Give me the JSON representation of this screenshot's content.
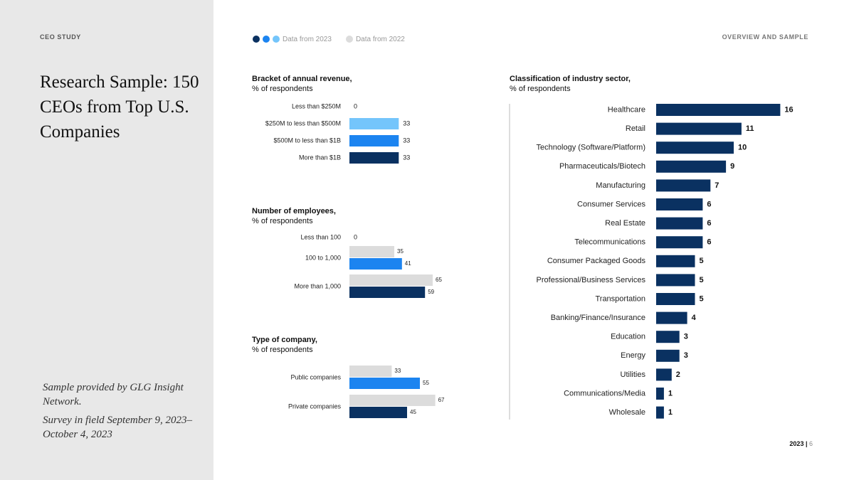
{
  "left": {
    "eyebrow": "CEO STUDY",
    "title": "Research Sample: 150 CEOs from Top U.S. Companies",
    "note1": "Sample provided by GLG Insight Network.",
    "note2": "Survey in field September 9, 2023–October 4, 2023"
  },
  "header": {
    "legend_2023": "Data from 2023",
    "legend_2022": "Data from 2022",
    "section": "OVERVIEW AND SAMPLE"
  },
  "footer": {
    "year": "2023",
    "page": "6"
  },
  "colors": {
    "navy": "#0a3161",
    "blue": "#1c84f0",
    "light_blue": "#74c5fb",
    "gray": "#dcdcdc",
    "sidebar": "#e8e8e8"
  },
  "chart_data": [
    {
      "id": "revenue",
      "type": "bar",
      "orientation": "horizontal",
      "title": "Bracket of annual revenue,",
      "subtitle": "% of respondents",
      "categories": [
        "Less than $250M",
        "$250M to less than $500M",
        "$500M to less than $1B",
        "More than $1B"
      ],
      "series": [
        {
          "values": [
            0,
            33,
            33,
            33
          ]
        }
      ],
      "bar_colors": [
        "#74c5fb",
        "#74c5fb",
        "#1c84f0",
        "#0a3161"
      ]
    },
    {
      "id": "employees",
      "type": "bar",
      "orientation": "horizontal",
      "title": "Number of employees,",
      "subtitle": "% of respondents",
      "categories": [
        "Less than 100",
        "100 to 1,000",
        "More than 1,000"
      ],
      "series": [
        {
          "name": "Data from 2022",
          "values": [
            null,
            35,
            65
          ]
        },
        {
          "name": "Data from 2023",
          "values": [
            0,
            41,
            59
          ]
        }
      ],
      "bar_colors_2023": [
        "#1c84f0",
        "#1c84f0",
        "#0a3161"
      ]
    },
    {
      "id": "company_type",
      "type": "bar",
      "orientation": "horizontal",
      "title": "Type of company,",
      "subtitle": "% of respondents",
      "categories": [
        "Public companies",
        "Private companies"
      ],
      "series": [
        {
          "name": "Data from 2022",
          "values": [
            33,
            67
          ]
        },
        {
          "name": "Data from 2023",
          "values": [
            55,
            45
          ]
        }
      ],
      "bar_colors_2023": [
        "#1c84f0",
        "#0a3161"
      ]
    },
    {
      "id": "industry",
      "type": "bar",
      "orientation": "horizontal",
      "title": "Classification of industry sector,",
      "subtitle": "% of respondents",
      "categories": [
        "Healthcare",
        "Retail",
        "Technology (Software/Platform)",
        "Pharmaceuticals/Biotech",
        "Manufacturing",
        "Consumer Services",
        "Real Estate",
        "Telecommunications",
        "Consumer Packaged Goods",
        "Professional/Business Services",
        "Transportation",
        "Banking/Finance/Insurance",
        "Education",
        "Energy",
        "Utilities",
        "Communications/Media",
        "Wholesale"
      ],
      "series": [
        {
          "values": [
            16,
            11,
            10,
            9,
            7,
            6,
            6,
            6,
            5,
            5,
            5,
            4,
            3,
            3,
            2,
            1,
            1
          ]
        }
      ],
      "bar_color": "#0a3161"
    }
  ]
}
